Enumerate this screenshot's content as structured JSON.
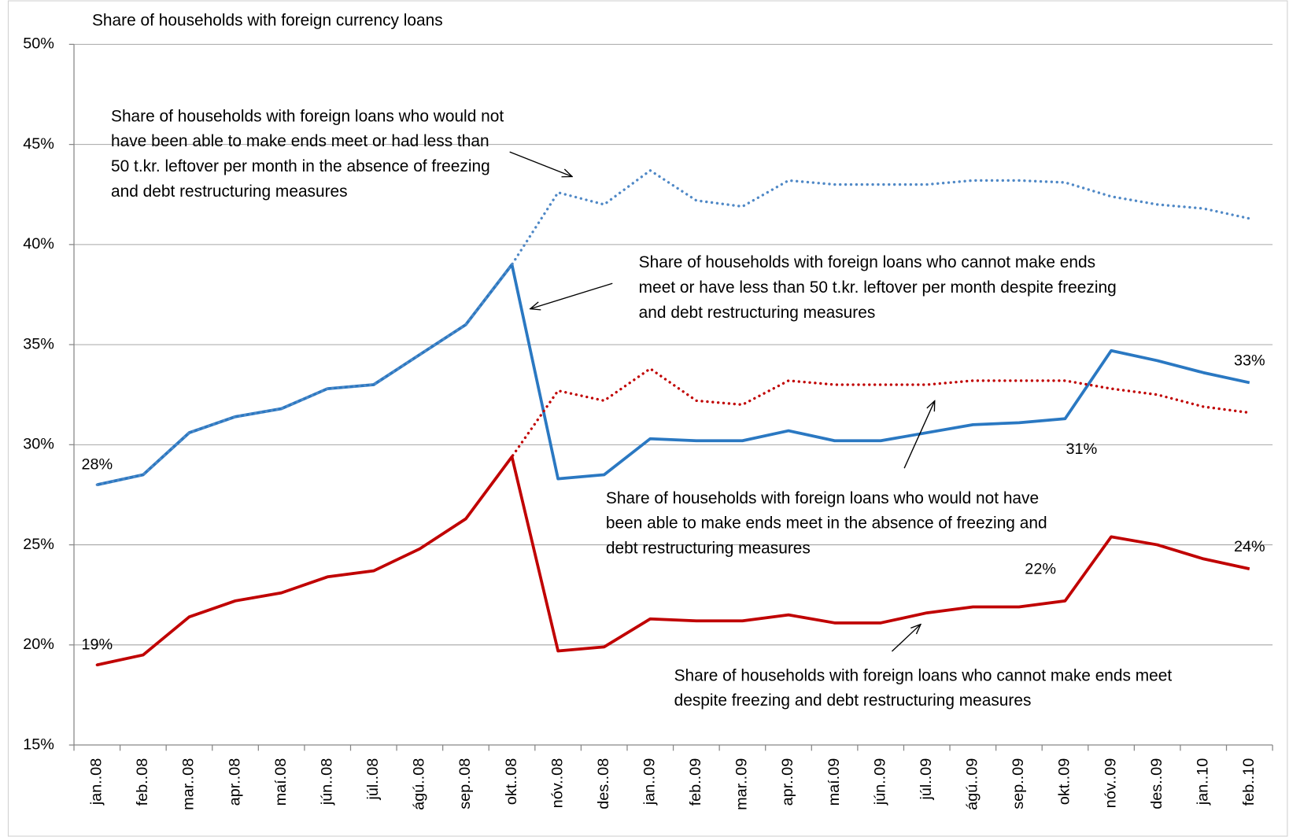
{
  "chart_data": {
    "type": "line",
    "y_axis_title": "Share of households  with foreign currency loans",
    "categories": [
      "jan..08",
      "feb..08",
      "mar..08",
      "apr..08",
      "maí.08",
      "jún..08",
      "júl..08",
      "ágú..08",
      "sep..08",
      "okt..08",
      "nóv..08",
      "des..08",
      "jan..09",
      "feb..09",
      "mar..09",
      "apr..09",
      "maí.09",
      "jún..09",
      "júl..09",
      "ágú..09",
      "sep..09",
      "okt..09",
      "nóv..09",
      "des..09",
      "jan..10",
      "feb..10"
    ],
    "ylim": [
      15,
      50
    ],
    "yticks": [
      {
        "value": 15,
        "label": "15%"
      },
      {
        "value": 20,
        "label": "20%"
      },
      {
        "value": 25,
        "label": "25%"
      },
      {
        "value": 30,
        "label": "30%"
      },
      {
        "value": 35,
        "label": "35%"
      },
      {
        "value": 40,
        "label": "40%"
      },
      {
        "value": 45,
        "label": "45%"
      },
      {
        "value": 50,
        "label": "50%"
      }
    ],
    "grid": true,
    "series": [
      {
        "name": "Share of households  with foreign loans who cannot make ends meet or have less than 50 t.kr. leftover per month despite freezing and debt restructuring measures",
        "color": "#2a78c2",
        "style": "solid",
        "values": [
          28,
          28.5,
          30.6,
          31.4,
          31.8,
          32.8,
          33,
          34.5,
          36,
          39,
          28.3,
          28.5,
          30.3,
          30.2,
          30.2,
          30.7,
          30.2,
          30.2,
          30.6,
          31,
          31.1,
          31.3,
          34.7,
          34.2,
          33.6,
          33.1
        ],
        "value_labels": [
          "28%",
          null,
          null,
          null,
          null,
          null,
          null,
          null,
          null,
          null,
          null,
          null,
          null,
          null,
          null,
          null,
          null,
          null,
          null,
          null,
          null,
          "31%",
          null,
          null,
          null,
          "33%"
        ]
      },
      {
        "name": "Share of households  with foreign loans who would not have been able to make ends meet or had less than 50 t.kr. leftover per month in the absence of freezing and debt restructuring measures",
        "color": "#4f88c6",
        "style": "dotted",
        "values": [
          28,
          28.5,
          30.6,
          31.4,
          31.8,
          32.8,
          33,
          34.5,
          36,
          39,
          42.6,
          42,
          43.7,
          42.2,
          41.9,
          43.2,
          43,
          43,
          43,
          43.2,
          43.2,
          43.1,
          42.4,
          42,
          41.8,
          41.3
        ]
      },
      {
        "name": "Share of households  with foreign loans who cannot make ends meet despite freezing and debt restructuring measures",
        "color": "#c00000",
        "style": "solid",
        "values": [
          19,
          19.5,
          21.4,
          22.2,
          22.6,
          23.4,
          23.7,
          24.8,
          26.3,
          29.4,
          19.7,
          19.9,
          21.3,
          21.2,
          21.2,
          21.5,
          21.1,
          21.1,
          21.6,
          21.9,
          21.9,
          22.2,
          25.4,
          25,
          24.3,
          23.8
        ],
        "value_labels": [
          "19%",
          null,
          null,
          null,
          null,
          null,
          null,
          null,
          null,
          null,
          null,
          null,
          null,
          null,
          null,
          null,
          null,
          null,
          null,
          null,
          null,
          "22%",
          null,
          null,
          null,
          "24%"
        ]
      },
      {
        "name": "Share of households  with foreign loans who would not have been able to make ends meet in the absence of freezing and debt restructuring measures",
        "color": "#c00000",
        "style": "dotted",
        "values": [
          19,
          19.5,
          21.4,
          22.2,
          22.6,
          23.4,
          23.7,
          24.8,
          26.3,
          29.4,
          32.7,
          32.2,
          33.8,
          32.2,
          32,
          33.2,
          33,
          33,
          33,
          33.2,
          33.2,
          33.2,
          32.8,
          32.5,
          31.9,
          31.6
        ]
      }
    ]
  }
}
